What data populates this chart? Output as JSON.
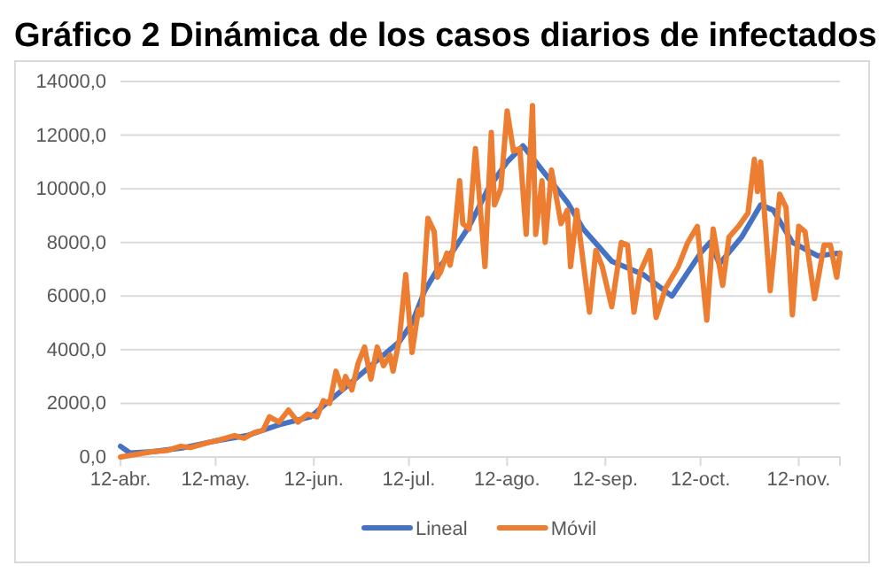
{
  "chart_data": {
    "type": "line",
    "title": "Gráfico 2 Dinámica de los casos diarios de infectados",
    "xlim": [
      "--04-12",
      "--11-25"
    ],
    "xticks": [
      {
        "value": "--04-12",
        "label": "12-abr."
      },
      {
        "value": "--05-12",
        "label": "12-may."
      },
      {
        "value": "--06-12",
        "label": "12-jun."
      },
      {
        "value": "--07-12",
        "label": "12-jul."
      },
      {
        "value": "--08-12",
        "label": "12-ago."
      },
      {
        "value": "--09-12",
        "label": "12-sep."
      },
      {
        "value": "--10-12",
        "label": "12-oct."
      },
      {
        "value": "--11-12",
        "label": "12-nov."
      }
    ],
    "ylim": [
      0,
      14000
    ],
    "yticks": [
      {
        "value": 0,
        "label": "0,0"
      },
      {
        "value": 2000,
        "label": "2000,0"
      },
      {
        "value": 4000,
        "label": "4000,0"
      },
      {
        "value": 6000,
        "label": "6000,0"
      },
      {
        "value": 8000,
        "label": "8000,0"
      },
      {
        "value": 10000,
        "label": "10000,0"
      },
      {
        "value": 12000,
        "label": "12000,0"
      },
      {
        "value": 14000,
        "label": "14000,0"
      }
    ],
    "grid": "y",
    "legend": "bottom",
    "marker": "none",
    "line_style": "solid",
    "series": [
      {
        "name": "Lineal",
        "color": "#4472c4",
        "x": [
          "--04-12",
          "--04-15",
          "--04-22",
          "--05-02",
          "--05-12",
          "--05-22",
          "--06-01",
          "--06-11",
          "--06-21",
          "--07-01",
          "--07-09",
          "--07-13",
          "--07-17",
          "--07-21",
          "--07-26",
          "--07-31",
          "--08-06",
          "--08-12",
          "--08-17",
          "--08-23",
          "--08-31",
          "--09-05",
          "--09-14",
          "--09-24",
          "--10-03",
          "--10-12",
          "--10-15",
          "--10-18",
          "--10-25",
          "--10-31",
          "--11-04",
          "--11-10",
          "--11-18",
          "--11-25"
        ],
        "values": [
          400,
          150,
          200,
          350,
          600,
          800,
          1200,
          1500,
          2500,
          3500,
          4300,
          5000,
          6200,
          7000,
          7700,
          8600,
          10000,
          11000,
          11600,
          10700,
          9500,
          8500,
          7300,
          6800,
          6000,
          7600,
          8000,
          7200,
          8200,
          9400,
          9200,
          8000,
          7500,
          7600
        ]
      },
      {
        "name": "Móvil",
        "color": "#ed7d31",
        "x": [
          "--04-12",
          "--04-17",
          "--04-22",
          "--04-27",
          "--05-01",
          "--05-04",
          "--05-07",
          "--05-10",
          "--05-12",
          "--05-15",
          "--05-18",
          "--05-21",
          "--05-24",
          "--05-27",
          "--05-29",
          "--06-01",
          "--06-04",
          "--06-07",
          "--06-10",
          "--06-13",
          "--06-15",
          "--06-17",
          "--06-19",
          "--06-21",
          "--06-22",
          "--06-24",
          "--06-26",
          "--06-28",
          "--06-30",
          "--07-02",
          "--07-04",
          "--07-06",
          "--07-07",
          "--07-09",
          "--07-11",
          "--07-13",
          "--07-15",
          "--07-16",
          "--07-18",
          "--07-20",
          "--07-21",
          "--07-22",
          "--07-24",
          "--07-25",
          "--07-26",
          "--07-28",
          "--07-29",
          "--07-31",
          "--08-02",
          "--08-05",
          "--08-07",
          "--08-08",
          "--08-10",
          "--08-12",
          "--08-14",
          "--08-16",
          "--08-18",
          "--08-20",
          "--08-21",
          "--08-23",
          "--08-24",
          "--08-26",
          "--08-29",
          "--08-31",
          "--09-01",
          "--09-03",
          "--09-04",
          "--09-07",
          "--09-09",
          "--09-11",
          "--09-14",
          "--09-17",
          "--09-19",
          "--09-21",
          "--09-23",
          "--09-26",
          "--09-28",
          "--10-01",
          "--10-05",
          "--10-08",
          "--10-11",
          "--10-14",
          "--10-16",
          "--10-19",
          "--10-21",
          "--10-24",
          "--10-27",
          "--10-29",
          "--10-30",
          "--10-31",
          "--11-03",
          "--11-06",
          "--11-08",
          "--11-10",
          "--11-12",
          "--11-14",
          "--11-17",
          "--11-20",
          "--11-22",
          "--11-24",
          "--11-25"
        ],
        "values": [
          0,
          100,
          200,
          250,
          400,
          350,
          450,
          550,
          600,
          700,
          800,
          700,
          900,
          1000,
          1500,
          1300,
          1750,
          1300,
          1600,
          1500,
          2100,
          2000,
          3200,
          2500,
          3000,
          2500,
          3500,
          4100,
          2900,
          4100,
          3400,
          3800,
          3200,
          4400,
          6800,
          3900,
          5500,
          5300,
          8900,
          8400,
          6700,
          6900,
          7600,
          7150,
          7800,
          10300,
          8700,
          8500,
          11500,
          7100,
          12100,
          9400,
          10000,
          12900,
          11400,
          11500,
          8300,
          13100,
          8300,
          10300,
          8000,
          10700,
          8700,
          9200,
          7100,
          9200,
          8200,
          5400,
          7700,
          7100,
          5600,
          8000,
          7900,
          5400,
          6900,
          7700,
          5200,
          6300,
          7100,
          8000,
          8600,
          5100,
          8500,
          6400,
          8200,
          8600,
          9100,
          11100,
          9900,
          11000,
          6200,
          9800,
          9300,
          5300,
          8600,
          8400,
          5900,
          7900,
          7900,
          6700,
          7600
        ]
      }
    ]
  }
}
